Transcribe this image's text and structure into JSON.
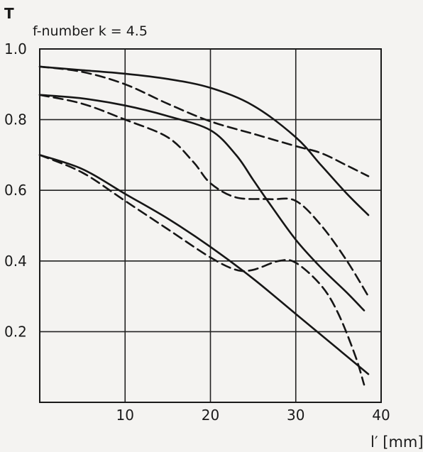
{
  "chart_data": {
    "type": "line",
    "title": "f-number k = 4.5",
    "ylabel": "T",
    "xlabel": "l′ [mm]",
    "xlim": [
      0,
      40
    ],
    "ylim": [
      0,
      1.0
    ],
    "x_ticks": [
      "10",
      "20",
      "30",
      "40"
    ],
    "y_ticks": [
      "1.0",
      "0.8",
      "0.6",
      "0.4",
      "0.2"
    ],
    "x_tick_values": [
      10,
      20,
      30,
      40
    ],
    "y_tick_values": [
      1.0,
      0.8,
      0.6,
      0.4,
      0.2
    ],
    "grid": true,
    "legend": "none",
    "series": [
      {
        "style": "solid",
        "points": [
          [
            0,
            0.95
          ],
          [
            5,
            0.94
          ],
          [
            10,
            0.93
          ],
          [
            15,
            0.915
          ],
          [
            20,
            0.89
          ],
          [
            25,
            0.84
          ],
          [
            30,
            0.75
          ],
          [
            33,
            0.67
          ],
          [
            36,
            0.59
          ],
          [
            38.5,
            0.53
          ]
        ]
      },
      {
        "style": "dashed",
        "points": [
          [
            0,
            0.95
          ],
          [
            5,
            0.935
          ],
          [
            10,
            0.9
          ],
          [
            15,
            0.845
          ],
          [
            20,
            0.795
          ],
          [
            25,
            0.76
          ],
          [
            30,
            0.725
          ],
          [
            33,
            0.705
          ],
          [
            36,
            0.67
          ],
          [
            38.5,
            0.64
          ]
        ]
      },
      {
        "style": "solid",
        "points": [
          [
            0,
            0.87
          ],
          [
            5,
            0.86
          ],
          [
            10,
            0.84
          ],
          [
            15,
            0.81
          ],
          [
            20,
            0.77
          ],
          [
            23,
            0.7
          ],
          [
            25,
            0.63
          ],
          [
            27,
            0.56
          ],
          [
            30,
            0.46
          ],
          [
            33,
            0.38
          ],
          [
            36,
            0.31
          ],
          [
            38,
            0.26
          ]
        ]
      },
      {
        "style": "dashed",
        "points": [
          [
            0,
            0.87
          ],
          [
            5,
            0.845
          ],
          [
            10,
            0.8
          ],
          [
            15,
            0.75
          ],
          [
            18,
            0.68
          ],
          [
            20,
            0.62
          ],
          [
            23,
            0.58
          ],
          [
            27,
            0.575
          ],
          [
            30,
            0.57
          ],
          [
            33,
            0.5
          ],
          [
            36,
            0.4
          ],
          [
            38.5,
            0.3
          ]
        ]
      },
      {
        "style": "solid",
        "points": [
          [
            0,
            0.7
          ],
          [
            5,
            0.66
          ],
          [
            10,
            0.59
          ],
          [
            15,
            0.52
          ],
          [
            20,
            0.44
          ],
          [
            25,
            0.35
          ],
          [
            30,
            0.25
          ],
          [
            35,
            0.15
          ],
          [
            38.5,
            0.08
          ]
        ]
      },
      {
        "style": "dashed",
        "points": [
          [
            0,
            0.7
          ],
          [
            5,
            0.65
          ],
          [
            10,
            0.57
          ],
          [
            15,
            0.49
          ],
          [
            20,
            0.41
          ],
          [
            23,
            0.375
          ],
          [
            25,
            0.375
          ],
          [
            28,
            0.4
          ],
          [
            30,
            0.395
          ],
          [
            33,
            0.33
          ],
          [
            35,
            0.25
          ],
          [
            37,
            0.13
          ],
          [
            38,
            0.05
          ]
        ]
      }
    ]
  }
}
